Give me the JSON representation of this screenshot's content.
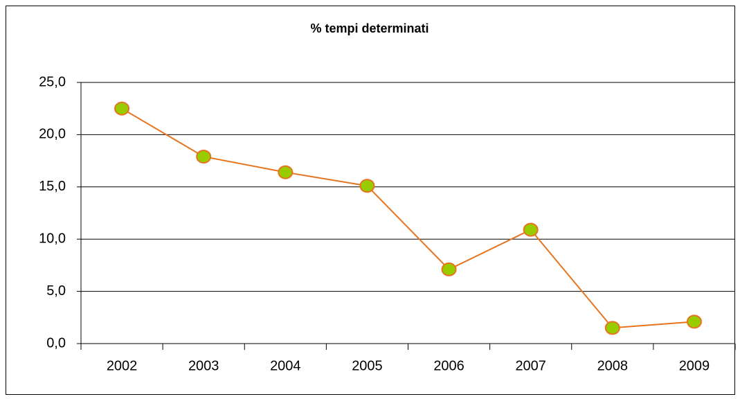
{
  "chart_data": {
    "type": "line",
    "title": "% tempi determinati",
    "categories": [
      "2002",
      "2003",
      "2004",
      "2005",
      "2006",
      "2007",
      "2008",
      "2009"
    ],
    "series": [
      {
        "name": "% tempi determinati",
        "color": "#e8731e",
        "marker_color": "#99cc00",
        "values": [
          22.5,
          17.9,
          16.4,
          15.1,
          7.1,
          10.9,
          1.5,
          2.1
        ]
      }
    ],
    "ylim": [
      0,
      25
    ],
    "yticks": [
      {
        "value": 0,
        "label": "0,0"
      },
      {
        "value": 5,
        "label": "5,0"
      },
      {
        "value": 10,
        "label": "10,0"
      },
      {
        "value": 15,
        "label": "15,0"
      },
      {
        "value": 20,
        "label": "20,0"
      },
      {
        "value": 25,
        "label": "25,0"
      }
    ],
    "grid": true
  }
}
